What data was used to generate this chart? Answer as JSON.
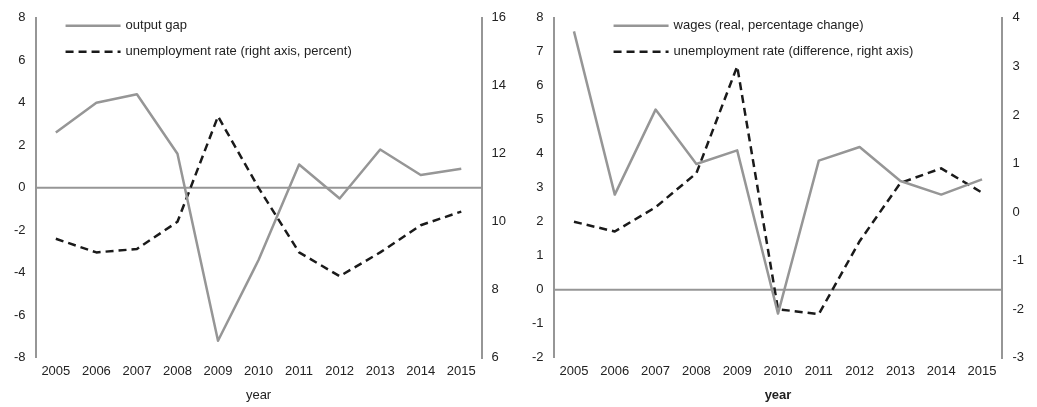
{
  "chart_data": [
    {
      "type": "line",
      "xlabel": "year",
      "categories": [
        "2005",
        "2006",
        "2007",
        "2008",
        "2009",
        "2010",
        "2011",
        "2012",
        "2013",
        "2014",
        "2015"
      ],
      "series": [
        {
          "name": "output gap",
          "color": "#969696",
          "line_style": "solid",
          "values": [
            2.6,
            4.0,
            4.4,
            1.6,
            -7.2,
            -3.4,
            1.1,
            -0.5,
            1.8,
            0.6,
            0.9
          ]
        },
        {
          "name": "unemployment rate (right axis, percent)",
          "color": "#1a1a1a",
          "line_style": "dashed",
          "axis": "y2",
          "values": [
            9.5,
            9.1,
            9.2,
            10.0,
            13.1,
            11.0,
            9.1,
            8.4,
            9.1,
            9.9,
            10.3
          ]
        }
      ],
      "ylim": [
        -8,
        8
      ],
      "yticks": [
        -8,
        -6,
        -4,
        -2,
        0,
        2,
        4,
        6,
        8
      ],
      "y2lim": [
        6,
        16
      ],
      "y2ticks": [
        6,
        8,
        10,
        12,
        14,
        16
      ],
      "ref_lines": [
        {
          "axis": "y",
          "value": 0,
          "color": "#969696"
        }
      ],
      "grid": false,
      "legend": "top left",
      "marker": "none"
    },
    {
      "type": "line",
      "xlabel": "year",
      "categories": [
        "2005",
        "2006",
        "2007",
        "2008",
        "2009",
        "2010",
        "2011",
        "2012",
        "2013",
        "2014",
        "2015"
      ],
      "series": [
        {
          "name": "wages (real, percentage change)",
          "color": "#969696",
          "line_style": "solid",
          "values": [
            7.6,
            2.8,
            5.3,
            3.7,
            4.1,
            -0.7,
            3.8,
            4.2,
            3.2,
            2.8,
            3.25
          ]
        },
        {
          "name": "unemployment rate (difference, right axis)",
          "color": "#1a1a1a",
          "line_style": "dashed",
          "axis": "y2",
          "values": [
            -0.2,
            -0.4,
            0.1,
            0.8,
            3.0,
            -2.0,
            -2.1,
            -0.6,
            0.6,
            0.9,
            0.4
          ]
        }
      ],
      "ylim": [
        -2,
        8
      ],
      "yticks": [
        -2,
        -1,
        0,
        1,
        2,
        3,
        4,
        5,
        6,
        7,
        8
      ],
      "y2lim": [
        -3,
        4
      ],
      "y2ticks": [
        -3,
        -2,
        -1,
        0,
        1,
        2,
        3,
        4
      ],
      "ref_lines": [
        {
          "axis": "y",
          "value": 0,
          "color": "#969696"
        }
      ],
      "grid": false,
      "legend": "top left",
      "marker": "none"
    }
  ]
}
